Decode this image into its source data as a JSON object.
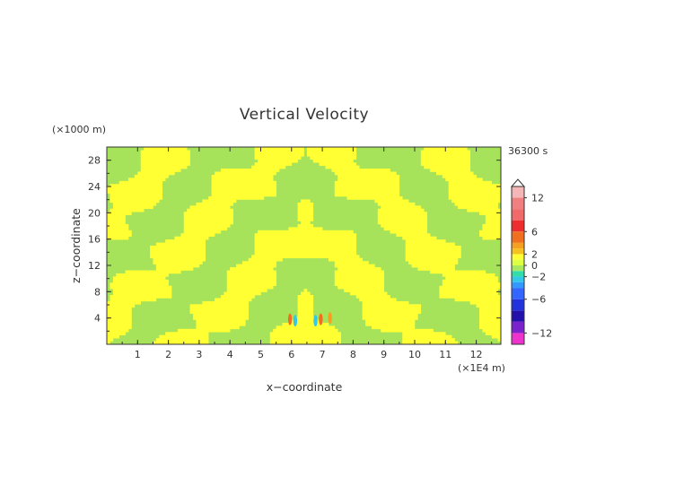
{
  "chart_data": {
    "type": "heatmap",
    "title": "Vertical Velocity",
    "xlabel": "x−coordinate",
    "ylabel": "z−coordinate",
    "x_unit": "(×1E4 m)",
    "z_unit": "(×1000 m)",
    "time_label": "36300 s",
    "xlim": [
      0,
      12.8
    ],
    "zlim": [
      0,
      30
    ],
    "x_ticks": [
      "1",
      "2",
      "3",
      "4",
      "5",
      "6",
      "7",
      "8",
      "9",
      "10",
      "11",
      "12"
    ],
    "z_ticks": [
      "4",
      "8",
      "12",
      "16",
      "20",
      "24",
      "28"
    ],
    "colorbar": {
      "tick_labels": [
        "12",
        "6",
        "2",
        "0",
        "−2",
        "−6",
        "−12"
      ],
      "tick_values": [
        12,
        6,
        2,
        0,
        -2,
        -6,
        -12
      ],
      "levels": [
        {
          "from": 12,
          "to": 14,
          "color": "#f4b6b6"
        },
        {
          "from": 10,
          "to": 12,
          "color": "#f07f7f"
        },
        {
          "from": 8,
          "to": 10,
          "color": "#f06a6a"
        },
        {
          "from": 6,
          "to": 8,
          "color": "#ee2e2e"
        },
        {
          "from": 4,
          "to": 6,
          "color": "#f07020"
        },
        {
          "from": 3,
          "to": 4,
          "color": "#f5a020"
        },
        {
          "from": 2,
          "to": 3,
          "color": "#f5c020"
        },
        {
          "from": 1,
          "to": 2,
          "color": "#ffff33"
        },
        {
          "from": 0,
          "to": 1,
          "color": "#ddff44"
        },
        {
          "from": -1,
          "to": 0,
          "color": "#a8e860"
        },
        {
          "from": -2,
          "to": -1,
          "color": "#33ddaa"
        },
        {
          "from": -3,
          "to": -2,
          "color": "#33c8e8"
        },
        {
          "from": -4,
          "to": -3,
          "color": "#3399ff"
        },
        {
          "from": -6,
          "to": -4,
          "color": "#3366ff"
        },
        {
          "from": -8,
          "to": -6,
          "color": "#2233dd"
        },
        {
          "from": -10,
          "to": -8,
          "color": "#2211aa"
        },
        {
          "from": -12,
          "to": -10,
          "color": "#7a22cc"
        },
        {
          "from": -14,
          "to": -12,
          "color": "#ee33cc"
        }
      ]
    },
    "field_colors": {
      "background": "#a6e35a",
      "positive": "#ffff33"
    },
    "grid": false
  }
}
